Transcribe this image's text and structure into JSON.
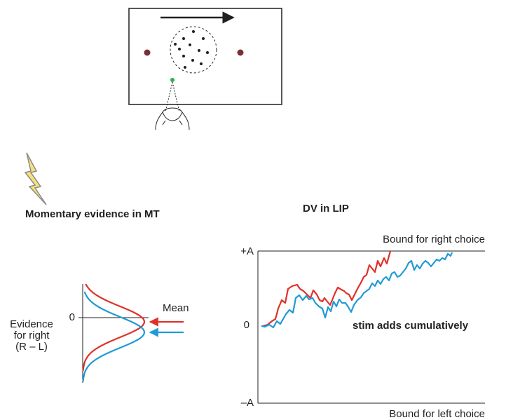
{
  "left_panel": {
    "title": "Momentary evidence in MT",
    "axis_label": [
      "Evidence",
      "for right",
      "(R – L)"
    ],
    "zero_label": "0",
    "mean_label": "Mean"
  },
  "right_panel": {
    "title": "DV in LIP",
    "upper_bound_label": "+A",
    "zero_label": "0",
    "lower_bound_label": "–A",
    "upper_bound_caption": "Bound for right choice",
    "lower_bound_caption": "Bound for left choice",
    "annotation": "stim adds cumulatively"
  }
}
